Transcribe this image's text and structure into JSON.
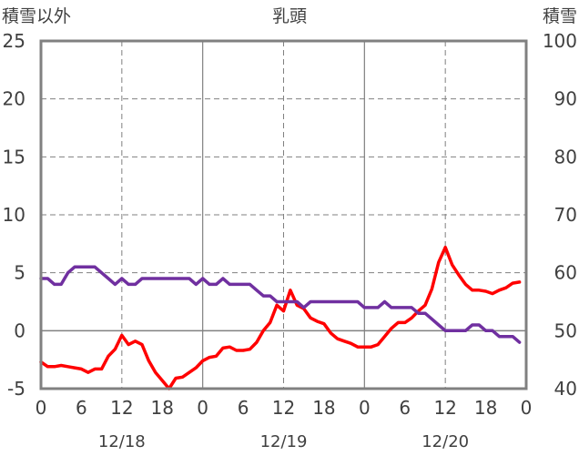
{
  "chart_data": {
    "type": "line",
    "title": "乳頭",
    "y_left_label": "積雪以外",
    "y_right_label": "積雪",
    "y_left_range": [
      -5,
      25
    ],
    "y_left_ticks": [
      -5,
      0,
      5,
      10,
      15,
      20,
      25
    ],
    "y_right_range": [
      40,
      100
    ],
    "y_right_ticks": [
      40,
      50,
      60,
      70,
      80,
      90,
      100
    ],
    "x_range_hours": [
      0,
      72
    ],
    "x_tick_hours": [
      0,
      6,
      12,
      18,
      24,
      30,
      36,
      42,
      48,
      54,
      60,
      66,
      72
    ],
    "x_tick_labels": [
      "0",
      "6",
      "12",
      "18",
      "0",
      "6",
      "12",
      "18",
      "0",
      "6",
      "12",
      "18",
      "0"
    ],
    "x_solid_grid_hours": [
      24,
      48
    ],
    "x_dashed_grid_hours": [
      12,
      36,
      60
    ],
    "y_dashed_grid_left": [
      5,
      10,
      15,
      20
    ],
    "y_zero_line": 0,
    "date_labels": [
      {
        "text": "12/18",
        "hour": 12
      },
      {
        "text": "12/19",
        "hour": 36
      },
      {
        "text": "12/20",
        "hour": 60
      }
    ],
    "series": [
      {
        "color": "#ff0000",
        "axis": "left",
        "x": [
          0,
          1,
          2,
          3,
          4,
          5,
          6,
          7,
          8,
          9,
          10,
          11,
          12,
          13,
          14,
          15,
          16,
          17,
          18,
          19,
          20,
          21,
          22,
          23,
          24,
          25,
          26,
          27,
          28,
          29,
          30,
          31,
          32,
          33,
          34,
          35,
          36,
          37,
          38,
          39,
          40,
          41,
          42,
          43,
          44,
          45,
          46,
          47,
          48,
          49,
          50,
          51,
          52,
          53,
          54,
          55,
          56,
          57,
          58,
          59,
          60,
          61,
          62,
          63,
          64,
          65,
          66,
          67,
          68,
          69,
          70,
          71
        ],
        "y": [
          -2.7,
          -3.1,
          -3.1,
          -3.0,
          -3.1,
          -3.2,
          -3.3,
          -3.6,
          -3.3,
          -3.3,
          -2.2,
          -1.6,
          -0.4,
          -1.2,
          -0.9,
          -1.2,
          -2.6,
          -3.6,
          -4.3,
          -5.0,
          -4.1,
          -4.0,
          -3.6,
          -3.2,
          -2.6,
          -2.3,
          -2.2,
          -1.5,
          -1.4,
          -1.7,
          -1.7,
          -1.6,
          -1.0,
          0.0,
          0.7,
          2.2,
          1.7,
          3.5,
          2.2,
          1.9,
          1.1,
          0.8,
          0.6,
          -0.2,
          -0.7,
          -0.9,
          -1.1,
          -1.4,
          -1.4,
          -1.4,
          -1.2,
          -0.5,
          0.2,
          0.7,
          0.7,
          1.1,
          1.7,
          2.2,
          3.6,
          5.9,
          7.2,
          5.7,
          4.8,
          4.0,
          3.5,
          3.5,
          3.4,
          3.2,
          3.5,
          3.7,
          4.1,
          4.2
        ]
      },
      {
        "color": "#7030a0",
        "axis": "right",
        "x": [
          0,
          1,
          2,
          3,
          4,
          5,
          6,
          7,
          8,
          9,
          10,
          11,
          12,
          13,
          14,
          15,
          16,
          17,
          18,
          19,
          20,
          21,
          22,
          23,
          24,
          25,
          26,
          27,
          28,
          29,
          30,
          31,
          32,
          33,
          34,
          35,
          36,
          37,
          38,
          39,
          40,
          41,
          42,
          43,
          44,
          45,
          46,
          47,
          48,
          49,
          50,
          51,
          52,
          53,
          54,
          55,
          56,
          57,
          58,
          59,
          60,
          61,
          62,
          63,
          64,
          65,
          66,
          67,
          68,
          69,
          70,
          71
        ],
        "y": [
          59,
          59,
          58,
          58,
          60,
          61,
          61,
          61,
          61,
          60,
          59,
          58,
          59,
          58,
          58,
          59,
          59,
          59,
          59,
          59,
          59,
          59,
          59,
          58,
          59,
          58,
          58,
          59,
          58,
          58,
          58,
          58,
          57,
          56,
          56,
          55,
          55,
          55,
          55,
          54,
          55,
          55,
          55,
          55,
          55,
          55,
          55,
          55,
          54,
          54,
          54,
          55,
          54,
          54,
          54,
          54,
          53,
          53,
          52,
          51,
          50,
          50,
          50,
          50,
          51,
          51,
          50,
          50,
          49,
          49,
          49,
          48
        ]
      }
    ]
  }
}
